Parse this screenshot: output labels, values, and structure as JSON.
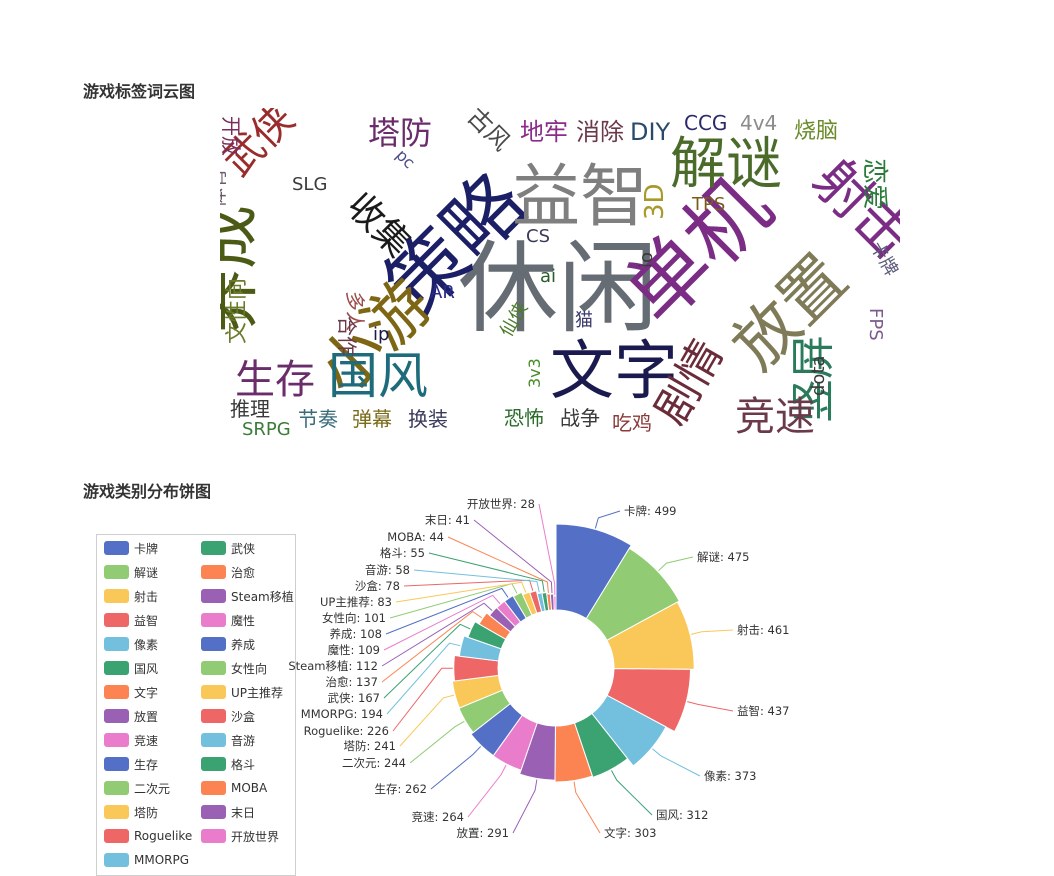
{
  "wordcloud_section": {
    "title": "游戏标签词云图"
  },
  "pie_section": {
    "title": "游戏类别分布饼图"
  },
  "chart_data": [
    {
      "type": "wordcloud",
      "words": [
        {
          "text": "休闲",
          "color": "#666c74"
        },
        {
          "text": "策略",
          "color": "#1b1f66"
        },
        {
          "text": "益智",
          "color": "#7f7f7f"
        },
        {
          "text": "单机",
          "color": "#7b2c84"
        },
        {
          "text": "养成",
          "color": "#4b5b16"
        },
        {
          "text": "放置",
          "color": "#7f7b58"
        },
        {
          "text": "文字",
          "color": "#1a1a4e"
        },
        {
          "text": "小游",
          "color": "#7d6614"
        },
        {
          "text": "解谜",
          "color": "#4b6b2a"
        },
        {
          "text": "射击",
          "color": "#7b2c84"
        },
        {
          "text": "国风",
          "color": "#1d6b7b"
        },
        {
          "text": "剧情",
          "color": "#6b2c3a"
        },
        {
          "text": "竖屏",
          "color": "#2a7b5b"
        },
        {
          "text": "武侠",
          "color": "#9b2c2c"
        },
        {
          "text": "生存",
          "color": "#6b2c6b"
        },
        {
          "text": "竞速",
          "color": "#6b3a4a"
        },
        {
          "text": "塔防",
          "color": "#6b2c6b"
        },
        {
          "text": "收集",
          "color": "#1a1a1a"
        },
        {
          "text": "3D",
          "color": "#a89a2a"
        },
        {
          "text": "地牢",
          "color": "#8b2c8b"
        },
        {
          "text": "消除",
          "color": "#6b3a4a"
        },
        {
          "text": "DIY",
          "color": "#2a4a6b"
        },
        {
          "text": "CCG",
          "color": "#2a2a6b"
        },
        {
          "text": "4v4",
          "color": "#8b8b8b"
        },
        {
          "text": "烧脑",
          "color": "#6b8b2a"
        },
        {
          "text": "恋爱",
          "color": "#2a7b3a"
        },
        {
          "text": "SLG",
          "color": "#3a3a3a"
        },
        {
          "text": "TPS",
          "color": "#7b5b1a"
        },
        {
          "text": "CS",
          "color": "#3a3a5b"
        },
        {
          "text": "古风",
          "color": "#4a4a4a"
        },
        {
          "text": "pc",
          "color": "#4a4a8b"
        },
        {
          "text": "AR",
          "color": "#2a2a8b"
        },
        {
          "text": "ai",
          "color": "#2a5b2a"
        },
        {
          "text": "io",
          "color": "#3a3a3a"
        },
        {
          "text": "猫",
          "color": "#3a3a6b"
        },
        {
          "text": "仙侠",
          "color": "#4a7b2a"
        },
        {
          "text": "3v3",
          "color": "#4a8b2a"
        },
        {
          "text": "ip",
          "color": "#1a1a4a"
        },
        {
          "text": "多人",
          "color": "#9b4b4b"
        },
        {
          "text": "合作",
          "color": "#6b3a4a"
        },
        {
          "text": "开放",
          "color": "#7b2c5b"
        },
        {
          "text": "体育",
          "color": "#6b5b6b"
        },
        {
          "text": "文性向",
          "color": "#6b7b2a"
        },
        {
          "text": "推理",
          "color": "#3a3a3a"
        },
        {
          "text": "SRPG",
          "color": "#3a7b3a"
        },
        {
          "text": "节奏",
          "color": "#3a6b7b"
        },
        {
          "text": "弹幕",
          "color": "#7b6b1a"
        },
        {
          "text": "换装",
          "color": "#3a3a5b"
        },
        {
          "text": "恐怖",
          "color": "#2a6b2a"
        },
        {
          "text": "战争",
          "color": "#3a3a3a"
        },
        {
          "text": "吃鸡",
          "color": "#8b3a3a"
        },
        {
          "text": "dota",
          "color": "#3a3a3a"
        },
        {
          "text": "FPS",
          "color": "#7b5b8b"
        },
        {
          "text": "卡牌",
          "color": "#5b5b7b"
        }
      ]
    },
    {
      "type": "pie",
      "subtype": "rose-donut",
      "legend_placement": "left",
      "slices": [
        {
          "name": "卡牌",
          "value": 499,
          "label": "卡牌: 499",
          "color": "#5470c6"
        },
        {
          "name": "解谜",
          "value": 475,
          "label": "解谜: 475",
          "color": "#91cc75"
        },
        {
          "name": "射击",
          "value": 461,
          "label": "射击: 461",
          "color": "#fac858"
        },
        {
          "name": "益智",
          "value": 437,
          "label": "益智: 437",
          "color": "#ee6666"
        },
        {
          "name": "像素",
          "value": 373,
          "label": "像素: 373",
          "color": "#73c0de"
        },
        {
          "name": "国风",
          "value": 312,
          "label": "国风: 312",
          "color": "#3ba272"
        },
        {
          "name": "文字",
          "value": 303,
          "label": "文字: 303",
          "color": "#fc8452"
        },
        {
          "name": "放置",
          "value": 291,
          "label": "放置: 291",
          "color": "#9a60b4"
        },
        {
          "name": "竞速",
          "value": 264,
          "label": "竞速: 264",
          "color": "#ea7ccc"
        },
        {
          "name": "生存",
          "value": 262,
          "label": "生存: 262",
          "color": "#5470c6"
        },
        {
          "name": "二次元",
          "value": 244,
          "label": "二次元: 244",
          "color": "#91cc75"
        },
        {
          "name": "塔防",
          "value": 241,
          "label": "塔防: 241",
          "color": "#fac858"
        },
        {
          "name": "Roguelike",
          "value": 226,
          "label": "Roguelike: 226",
          "color": "#ee6666"
        },
        {
          "name": "MMORPG",
          "value": 194,
          "label": "MMORPG: 194",
          "color": "#73c0de"
        },
        {
          "name": "武侠",
          "value": 167,
          "label": "武侠: 167",
          "color": "#3ba272"
        },
        {
          "name": "治愈",
          "value": 137,
          "label": "治愈: 137",
          "color": "#fc8452"
        },
        {
          "name": "Steam移植",
          "value": 112,
          "label": "Steam移植: 112",
          "color": "#9a60b4"
        },
        {
          "name": "魔性",
          "value": 109,
          "label": "魔性: 109",
          "color": "#ea7ccc"
        },
        {
          "name": "养成",
          "value": 108,
          "label": "养成: 108",
          "color": "#5470c6"
        },
        {
          "name": "女性向",
          "value": 101,
          "label": "女性向: 101",
          "color": "#91cc75"
        },
        {
          "name": "UP主推荐",
          "value": 83,
          "label": "UP主推荐: 83",
          "color": "#fac858"
        },
        {
          "name": "沙盒",
          "value": 78,
          "label": "沙盒: 78",
          "color": "#ee6666"
        },
        {
          "name": "音游",
          "value": 58,
          "label": "音游: 58",
          "color": "#73c0de"
        },
        {
          "name": "格斗",
          "value": 55,
          "label": "格斗: 55",
          "color": "#3ba272"
        },
        {
          "name": "MOBA",
          "value": 44,
          "label": "MOBA: 44",
          "color": "#fc8452"
        },
        {
          "name": "末日",
          "value": 41,
          "label": "末日: 41",
          "color": "#9a60b4"
        },
        {
          "name": "开放世界",
          "value": 28,
          "label": "开放世界: 28",
          "color": "#ea7ccc"
        }
      ]
    }
  ]
}
